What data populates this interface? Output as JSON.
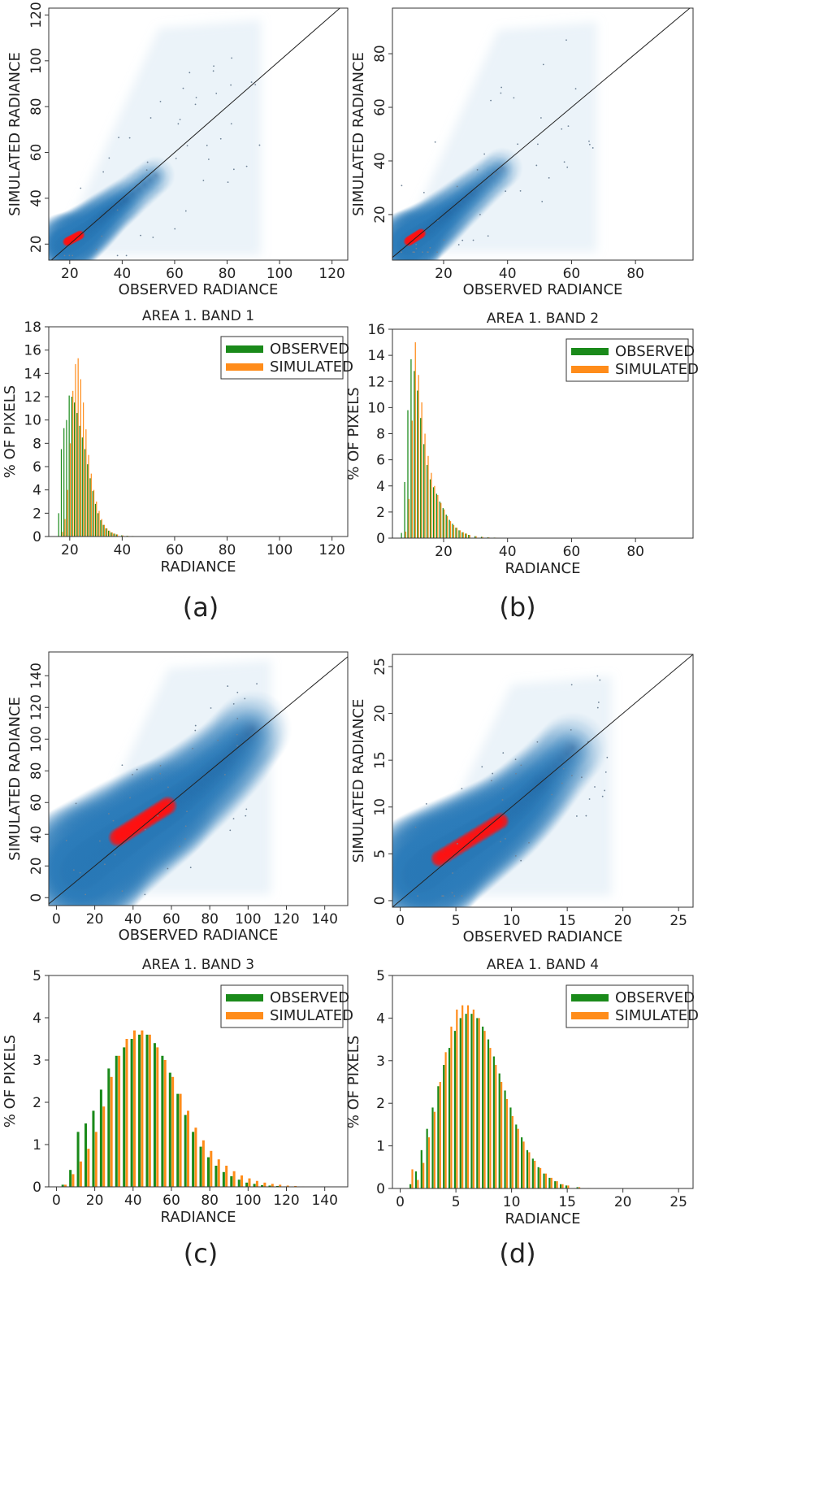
{
  "colors": {
    "observed": "#1a8a1a",
    "simulated": "#ff8c1a",
    "density_light": "#c6dcef",
    "density_mid": "#2a7ab8",
    "density_dark": "#08306b",
    "density_peak": "#ff1010",
    "frame": "#333333"
  },
  "chart_data": [
    {
      "panel": "a",
      "panel_label": "(a)",
      "scatter": {
        "type": "heatmap",
        "title": "",
        "xlabel": "OBSERVED RADIANCE",
        "ylabel": "SIMULATED RADIANCE",
        "xlim": [
          12,
          126
        ],
        "ylim": [
          13,
          123
        ],
        "xticks": [
          20,
          40,
          60,
          80,
          100,
          120
        ],
        "yticks": [
          20,
          40,
          60,
          80,
          100,
          120
        ],
        "identity_line": true,
        "density_cloud": {
          "ridge": [
            [
              17,
              19
            ],
            [
              22,
              22
            ],
            [
              28,
              27
            ],
            [
              34,
              33
            ],
            [
              42,
              40
            ],
            [
              55,
              52
            ]
          ],
          "spread": 2.5,
          "peak": [
            [
              19,
              21
            ],
            [
              24,
              24
            ]
          ],
          "halo": {
            "x": [
              15,
              93
            ],
            "y": [
              15,
              118
            ]
          }
        }
      },
      "histogram": {
        "type": "bar",
        "title": "AREA 1. BAND 1",
        "xlabel": "RADIANCE",
        "ylabel": "% OF PIXELS",
        "xlim": [
          12,
          126
        ],
        "ylim": [
          0,
          18
        ],
        "xticks": [
          20,
          40,
          60,
          80,
          100,
          120
        ],
        "yticks": [
          0,
          2,
          4,
          6,
          8,
          10,
          12,
          14,
          16,
          18
        ],
        "legend": [
          "OBSERVED",
          "SIMULATED"
        ],
        "series": [
          {
            "name": "OBSERVED",
            "x": [
              16,
              17,
              18,
              19,
              20,
              21,
              22,
              23,
              24,
              25,
              26,
              27,
              28,
              29,
              30,
              31,
              32,
              33,
              34,
              35,
              36,
              37,
              38,
              40,
              42,
              44,
              46,
              48,
              50
            ],
            "values": [
              2.0,
              7.5,
              9.3,
              10.0,
              12.1,
              12.0,
              11.5,
              10.6,
              9.5,
              8.5,
              7.5,
              6.2,
              5.0,
              3.9,
              2.8,
              2.0,
              1.4,
              1.0,
              0.7,
              0.5,
              0.35,
              0.25,
              0.18,
              0.1,
              0.06,
              0.04,
              0.02,
              0.01,
              0.01
            ]
          },
          {
            "name": "SIMULATED",
            "x": [
              16,
              17,
              18,
              19,
              20,
              21,
              22,
              23,
              24,
              25,
              26,
              27,
              28,
              29,
              30,
              31,
              32,
              33,
              34,
              35,
              36,
              37,
              38,
              40,
              42,
              44,
              46,
              48,
              50
            ],
            "values": [
              0.0,
              0.4,
              1.5,
              4.0,
              8.0,
              12.5,
              14.8,
              15.3,
              13.5,
              11.5,
              9.2,
              7.0,
              5.4,
              4.0,
              3.0,
              2.2,
              1.5,
              1.0,
              0.7,
              0.5,
              0.35,
              0.25,
              0.18,
              0.1,
              0.06,
              0.04,
              0.02,
              0.01,
              0.01
            ]
          }
        ]
      }
    },
    {
      "panel": "b",
      "panel_label": "(b)",
      "scatter": {
        "type": "heatmap",
        "title": "",
        "xlabel": "OBSERVED RADIANCE",
        "ylabel": "SIMULATED RADIANCE",
        "xlim": [
          4,
          98
        ],
        "ylim": [
          3,
          97
        ],
        "xticks": [
          20,
          40,
          60,
          80
        ],
        "yticks": [
          20,
          40,
          60,
          80
        ],
        "identity_line": true,
        "density_cloud": {
          "ridge": [
            [
              8,
              8
            ],
            [
              11,
              11
            ],
            [
              16,
              15
            ],
            [
              22,
              21
            ],
            [
              30,
              29
            ],
            [
              40,
              39
            ]
          ],
          "spread": 2.2,
          "peak": [
            [
              9,
              10
            ],
            [
              13,
              13
            ]
          ],
          "halo": {
            "x": [
              6,
              68
            ],
            "y": [
              6,
              92
            ]
          }
        }
      },
      "histogram": {
        "type": "bar",
        "title": "AREA 1. BAND 2",
        "xlabel": "RADIANCE",
        "ylabel": "% OF PIXELS",
        "xlim": [
          4,
          98
        ],
        "ylim": [
          0,
          16
        ],
        "xticks": [
          20,
          40,
          60,
          80
        ],
        "yticks": [
          0,
          2,
          4,
          6,
          8,
          10,
          12,
          14,
          16
        ],
        "legend": [
          "OBSERVED",
          "SIMULATED"
        ],
        "series": [
          {
            "name": "OBSERVED",
            "x": [
              7,
              8,
              9,
              10,
              11,
              12,
              13,
              14,
              15,
              16,
              17,
              18,
              19,
              20,
              21,
              22,
              23,
              24,
              25,
              26,
              27,
              28,
              30,
              32,
              34,
              36,
              38,
              40
            ],
            "values": [
              0.4,
              4.3,
              9.8,
              13.7,
              12.8,
              11.3,
              9.2,
              7.2,
              5.6,
              4.5,
              3.9,
              3.4,
              2.8,
              2.3,
              1.8,
              1.4,
              1.1,
              0.8,
              0.6,
              0.45,
              0.35,
              0.25,
              0.15,
              0.1,
              0.06,
              0.04,
              0.02,
              0.01
            ]
          },
          {
            "name": "SIMULATED",
            "x": [
              7,
              8,
              9,
              10,
              11,
              12,
              13,
              14,
              15,
              16,
              17,
              18,
              19,
              20,
              21,
              22,
              23,
              24,
              25,
              26,
              27,
              28,
              30,
              32,
              34,
              36,
              38,
              40
            ],
            "values": [
              0.0,
              0.5,
              3.0,
              9.0,
              15.0,
              12.5,
              10.4,
              8.0,
              6.3,
              5.0,
              4.0,
              3.3,
              2.7,
              2.2,
              1.7,
              1.3,
              1.0,
              0.8,
              0.6,
              0.45,
              0.35,
              0.25,
              0.15,
              0.1,
              0.06,
              0.04,
              0.02,
              0.01
            ]
          }
        ]
      }
    },
    {
      "panel": "c",
      "panel_label": "(c)",
      "scatter": {
        "type": "heatmap",
        "title": "",
        "xlabel": "OBSERVED RADIANCE",
        "ylabel": "SIMULATED RADIANCE",
        "xlim": [
          -4,
          152
        ],
        "ylim": [
          -5,
          155
        ],
        "xticks": [
          0,
          20,
          40,
          60,
          80,
          100,
          120,
          140
        ],
        "yticks": [
          0,
          20,
          40,
          60,
          80,
          100,
          120,
          140
        ],
        "identity_line": true,
        "density_cloud": {
          "ridge": [
            [
              10,
              15
            ],
            [
              20,
              25
            ],
            [
              35,
              38
            ],
            [
              50,
              50
            ],
            [
              60,
              58
            ],
            [
              75,
              72
            ],
            [
              90,
              88
            ],
            [
              105,
              110
            ]
          ],
          "spread": 7,
          "peak": [
            [
              32,
              38
            ],
            [
              58,
              58
            ]
          ],
          "halo": {
            "x": [
              5,
              112
            ],
            "y": [
              2,
              150
            ]
          }
        }
      },
      "histogram": {
        "type": "bar",
        "title": "AREA 1. BAND 3",
        "xlabel": "RADIANCE",
        "ylabel": "% OF PIXELS",
        "xlim": [
          -4,
          152
        ],
        "ylim": [
          0,
          5
        ],
        "xticks": [
          0,
          20,
          40,
          60,
          80,
          100,
          120,
          140
        ],
        "yticks": [
          0,
          1,
          2,
          3,
          4,
          5
        ],
        "legend": [
          "OBSERVED",
          "SIMULATED"
        ],
        "series": [
          {
            "name": "OBSERVED",
            "x": [
              0,
              4,
              8,
              12,
              16,
              20,
              24,
              28,
              32,
              36,
              40,
              44,
              48,
              52,
              56,
              60,
              64,
              68,
              72,
              76,
              80,
              84,
              88,
              92,
              96,
              100,
              104,
              108,
              112,
              116,
              120,
              124,
              128
            ],
            "values": [
              0.0,
              0.05,
              0.4,
              1.3,
              1.5,
              1.8,
              2.3,
              2.8,
              3.1,
              3.3,
              3.5,
              3.6,
              3.6,
              3.4,
              3.1,
              2.7,
              2.2,
              1.7,
              1.3,
              0.95,
              0.7,
              0.5,
              0.35,
              0.25,
              0.17,
              0.1,
              0.07,
              0.04,
              0.03,
              0.02,
              0.01,
              0.01,
              0.0
            ]
          },
          {
            "name": "SIMULATED",
            "x": [
              0,
              4,
              8,
              12,
              16,
              20,
              24,
              28,
              32,
              36,
              40,
              44,
              48,
              52,
              56,
              60,
              64,
              68,
              72,
              76,
              80,
              84,
              88,
              92,
              96,
              100,
              104,
              108,
              112,
              116,
              120,
              124,
              128
            ],
            "values": [
              0.0,
              0.05,
              0.3,
              0.6,
              0.9,
              1.3,
              1.9,
              2.6,
              3.1,
              3.5,
              3.7,
              3.7,
              3.6,
              3.3,
              3.0,
              2.6,
              2.2,
              1.8,
              1.4,
              1.1,
              0.85,
              0.65,
              0.5,
              0.37,
              0.27,
              0.2,
              0.14,
              0.1,
              0.07,
              0.05,
              0.03,
              0.02,
              0.01
            ]
          }
        ]
      }
    },
    {
      "panel": "d",
      "panel_label": "(d)",
      "scatter": {
        "type": "heatmap",
        "title": "",
        "xlabel": "OBSERVED RADIANCE",
        "ylabel": "SIMULATED RADIANCE",
        "xlim": [
          -0.7,
          26.3
        ],
        "ylim": [
          -0.7,
          26.3
        ],
        "xticks": [
          0,
          5,
          10,
          15,
          20,
          25
        ],
        "yticks": [
          0,
          5,
          10,
          15,
          20,
          25
        ],
        "identity_line": true,
        "density_cloud": {
          "ridge": [
            [
              1.5,
              2.5
            ],
            [
              3,
              4
            ],
            [
              5,
              5.5
            ],
            [
              7,
              7
            ],
            [
              9,
              8.5
            ],
            [
              11,
              10.5
            ],
            [
              13,
              13
            ],
            [
              16,
              17
            ]
          ],
          "spread": 1.1,
          "peak": [
            [
              3.5,
              4.5
            ],
            [
              9,
              8.5
            ]
          ],
          "halo": {
            "x": [
              1,
              19
            ],
            "y": [
              0.5,
              24
            ]
          }
        }
      },
      "histogram": {
        "type": "bar",
        "title": "AREA 1. BAND 4",
        "xlabel": "RADIANCE",
        "ylabel": "% OF PIXELS",
        "xlim": [
          -0.7,
          26.3
        ],
        "ylim": [
          0,
          5
        ],
        "xticks": [
          0,
          5,
          10,
          15,
          20,
          25
        ],
        "yticks": [
          0,
          1,
          2,
          3,
          4,
          5
        ],
        "legend": [
          "OBSERVED",
          "SIMULATED"
        ],
        "series": [
          {
            "name": "OBSERVED",
            "x": [
              1.0,
              1.5,
              2.0,
              2.5,
              3.0,
              3.5,
              4.0,
              4.5,
              5.0,
              5.5,
              6.0,
              6.5,
              7.0,
              7.5,
              8.0,
              8.5,
              9.0,
              9.5,
              10.0,
              10.5,
              11.0,
              11.5,
              12.0,
              12.5,
              13.0,
              13.5,
              14.0,
              14.5,
              15.0,
              16.0,
              17.0,
              18.0
            ],
            "values": [
              0.1,
              0.4,
              0.9,
              1.4,
              1.9,
              2.4,
              2.9,
              3.3,
              3.7,
              4.0,
              4.1,
              4.1,
              4.0,
              3.8,
              3.5,
              3.1,
              2.7,
              2.3,
              1.9,
              1.5,
              1.2,
              0.9,
              0.7,
              0.5,
              0.35,
              0.25,
              0.17,
              0.1,
              0.07,
              0.03,
              0.01,
              0.0
            ]
          },
          {
            "name": "SIMULATED",
            "x": [
              1.0,
              1.5,
              2.0,
              2.5,
              3.0,
              3.5,
              4.0,
              4.5,
              5.0,
              5.5,
              6.0,
              6.5,
              7.0,
              7.5,
              8.0,
              8.5,
              9.0,
              9.5,
              10.0,
              10.5,
              11.0,
              11.5,
              12.0,
              12.5,
              13.0,
              13.5,
              14.0,
              14.5,
              15.0,
              16.0,
              17.0,
              18.0
            ],
            "values": [
              0.45,
              0.2,
              0.6,
              1.2,
              1.8,
              2.5,
              3.2,
              3.8,
              4.2,
              4.3,
              4.3,
              4.2,
              4.0,
              3.7,
              3.3,
              2.9,
              2.5,
              2.1,
              1.7,
              1.4,
              1.1,
              0.85,
              0.65,
              0.48,
              0.35,
              0.25,
              0.17,
              0.1,
              0.07,
              0.03,
              0.01,
              0.0
            ]
          }
        ]
      }
    }
  ]
}
